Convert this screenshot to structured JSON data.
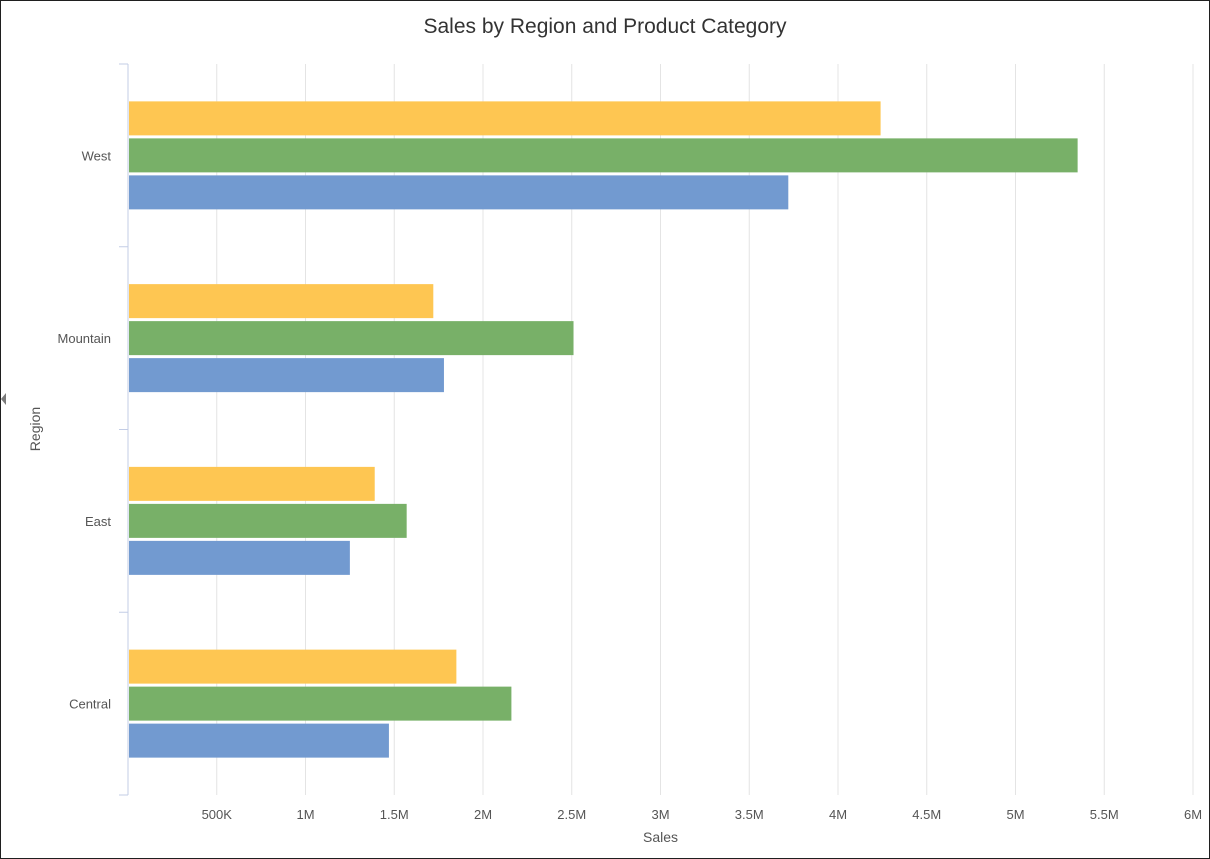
{
  "chart_data": {
    "type": "bar",
    "orientation": "horizontal",
    "title": "Sales by Region and Product Category",
    "xlabel": "Sales",
    "ylabel": "Region",
    "categories": [
      "West",
      "Mountain",
      "East",
      "Central"
    ],
    "series": [
      {
        "color": "#fec652",
        "values": [
          4240000,
          1720000,
          1390000,
          1850000
        ]
      },
      {
        "color": "#78b068",
        "values": [
          5350000,
          2510000,
          1570000,
          2160000
        ]
      },
      {
        "color": "#729ad0",
        "values": [
          3720000,
          1780000,
          1250000,
          1470000
        ]
      }
    ],
    "xlim": [
      0,
      6000000
    ],
    "x_ticks": [
      500000,
      1000000,
      1500000,
      2000000,
      2500000,
      3000000,
      3500000,
      4000000,
      4500000,
      5000000,
      5500000,
      6000000
    ],
    "x_tick_labels": [
      "500K",
      "1M",
      "1.5M",
      "2M",
      "2.5M",
      "3M",
      "3.5M",
      "4M",
      "4.5M",
      "5M",
      "5.5M",
      "6M"
    ],
    "grid": true,
    "legend": "none"
  },
  "colors": {
    "grid": "#e4e4e4",
    "axis": "#c3cde6",
    "text": "#555555",
    "title": "#333333"
  }
}
